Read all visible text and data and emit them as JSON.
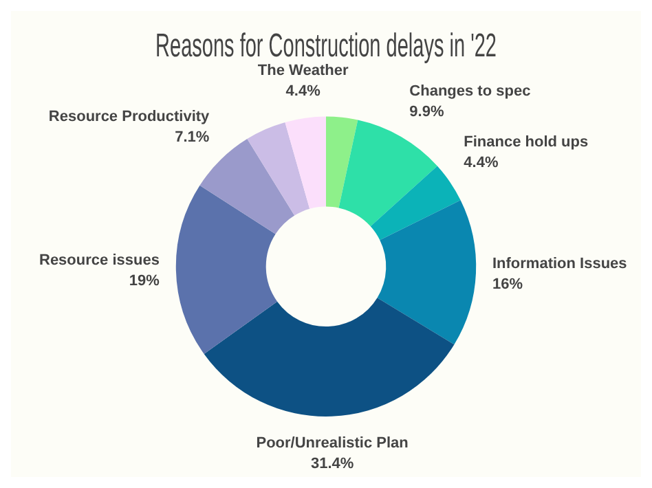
{
  "chart_data": {
    "type": "donut",
    "title": "Reasons for Construction delays in '22",
    "categories": [
      null,
      "Changes to spec",
      "Finance hold ups",
      "Information Issues",
      "Poor/Unrealistic Plan",
      "Resource issues",
      "Resource Productivity",
      null,
      "The Weather"
    ],
    "values": [
      3.4,
      9.9,
      4.4,
      16,
      31.4,
      19,
      7.1,
      4.4,
      4.4
    ],
    "value_labels": [
      null,
      "9.9%",
      "4.4%",
      "16%",
      "31.4%",
      "19%",
      "7.1%",
      null,
      "4.4%"
    ],
    "colors": [
      "#8ef08a",
      "#2ee0a8",
      "#0bb3b8",
      "#0a87b0",
      "#0d5184",
      "#5b72ac",
      "#9a9acb",
      "#cbbde6",
      "#fbdffb"
    ],
    "legend": false
  }
}
